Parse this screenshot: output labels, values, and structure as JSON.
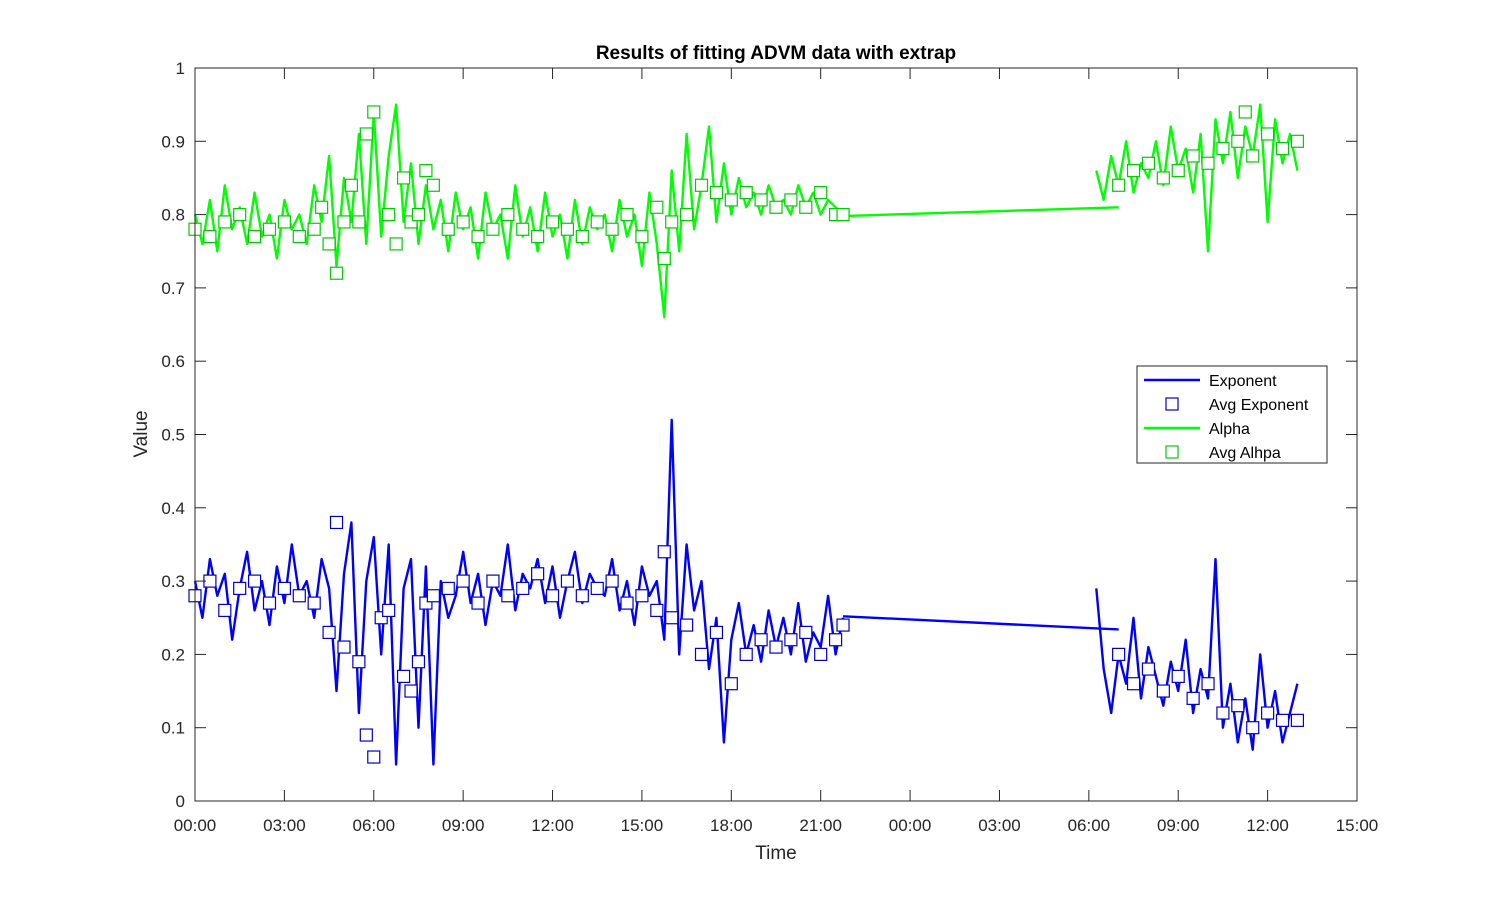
{
  "chart_data": {
    "type": "line",
    "title": "Results of fitting ADVM data with extrap",
    "xlabel": "Time",
    "ylabel": "Value",
    "xlim_hours": [
      0,
      39
    ],
    "ylim": [
      0,
      1
    ],
    "x_ticks": [
      {
        "hours": 0,
        "label": "00:00"
      },
      {
        "hours": 3,
        "label": "03:00"
      },
      {
        "hours": 6,
        "label": "06:00"
      },
      {
        "hours": 9,
        "label": "09:00"
      },
      {
        "hours": 12,
        "label": "12:00"
      },
      {
        "hours": 15,
        "label": "15:00"
      },
      {
        "hours": 18,
        "label": "18:00"
      },
      {
        "hours": 21,
        "label": "21:00"
      },
      {
        "hours": 24,
        "label": "00:00"
      },
      {
        "hours": 27,
        "label": "03:00"
      },
      {
        "hours": 30,
        "label": "06:00"
      },
      {
        "hours": 33,
        "label": "09:00"
      },
      {
        "hours": 36,
        "label": "12:00"
      },
      {
        "hours": 39,
        "label": "15:00"
      }
    ],
    "y_ticks": [
      {
        "value": 0,
        "label": "0"
      },
      {
        "value": 0.1,
        "label": "0.1"
      },
      {
        "value": 0.2,
        "label": "0.2"
      },
      {
        "value": 0.3,
        "label": "0.3"
      },
      {
        "value": 0.4,
        "label": "0.4"
      },
      {
        "value": 0.5,
        "label": "0.5"
      },
      {
        "value": 0.6,
        "label": "0.6"
      },
      {
        "value": 0.7,
        "label": "0.7"
      },
      {
        "value": 0.8,
        "label": "0.8"
      },
      {
        "value": 0.9,
        "label": "0.9"
      },
      {
        "value": 1,
        "label": "1"
      }
    ],
    "grid": false,
    "legend_position": "right",
    "series": [
      {
        "name": "Exponent",
        "kind": "line",
        "color": "#0000ff",
        "x": [
          0.0,
          0.25,
          0.5,
          0.75,
          1.0,
          1.25,
          1.5,
          1.75,
          2.0,
          2.25,
          2.5,
          2.75,
          3.0,
          3.25,
          3.5,
          3.75,
          4.0,
          4.25,
          4.5,
          4.75,
          5.0,
          5.25,
          5.5,
          5.75,
          6.0,
          6.25,
          6.5,
          6.75,
          7.0,
          7.25,
          7.5,
          7.75,
          8.0,
          8.25,
          8.5,
          8.75,
          9.0,
          9.25,
          9.5,
          9.75,
          10.0,
          10.25,
          10.5,
          10.75,
          11.0,
          11.25,
          11.5,
          11.75,
          12.0,
          12.25,
          12.5,
          12.75,
          13.0,
          13.25,
          13.5,
          13.75,
          14.0,
          14.25,
          14.5,
          14.75,
          15.0,
          15.25,
          15.5,
          15.75,
          16.0,
          16.25,
          16.5,
          16.75,
          17.0,
          17.25,
          17.5,
          17.75,
          18.0,
          18.25,
          18.5,
          18.75,
          19.0,
          19.25,
          19.5,
          19.75,
          20.0,
          20.25,
          20.5,
          20.75,
          21.0,
          21.25,
          21.5,
          21.75,
          30.25,
          30.5,
          30.75,
          31.0,
          31.25,
          31.5,
          31.75,
          32.0,
          32.25,
          32.5,
          32.75,
          33.0,
          33.25,
          33.5,
          33.75,
          34.0,
          34.25,
          34.5,
          34.75,
          35.0,
          35.25,
          35.5,
          35.75,
          36.0,
          36.25,
          36.5,
          36.75,
          37.0
        ],
        "values": [
          0.3,
          0.25,
          0.33,
          0.28,
          0.31,
          0.22,
          0.29,
          0.34,
          0.26,
          0.3,
          0.24,
          0.32,
          0.27,
          0.35,
          0.28,
          0.3,
          0.25,
          0.33,
          0.29,
          0.15,
          0.31,
          0.38,
          0.12,
          0.3,
          0.36,
          0.2,
          0.35,
          0.05,
          0.29,
          0.33,
          0.1,
          0.32,
          0.05,
          0.3,
          0.25,
          0.28,
          0.34,
          0.27,
          0.31,
          0.24,
          0.3,
          0.28,
          0.35,
          0.26,
          0.31,
          0.29,
          0.33,
          0.27,
          0.32,
          0.25,
          0.3,
          0.34,
          0.27,
          0.31,
          0.29,
          0.28,
          0.33,
          0.26,
          0.3,
          0.24,
          0.32,
          0.28,
          0.3,
          0.22,
          0.52,
          0.2,
          0.35,
          0.26,
          0.3,
          0.18,
          0.25,
          0.08,
          0.22,
          0.27,
          0.2,
          0.24,
          0.19,
          0.26,
          0.21,
          0.25,
          0.2,
          0.27,
          0.19,
          0.23,
          0.21,
          0.28,
          0.2,
          0.25,
          0.29,
          0.18,
          0.12,
          0.2,
          0.16,
          0.25,
          0.14,
          0.21,
          0.17,
          0.13,
          0.19,
          0.15,
          0.22,
          0.12,
          0.18,
          0.14,
          0.33,
          0.1,
          0.16,
          0.08,
          0.14,
          0.07,
          0.2,
          0.1,
          0.15,
          0.08,
          0.12,
          0.16
        ],
        "bridge": [
          {
            "x": 21.75,
            "y": 0.252
          },
          {
            "x": 31.0,
            "y": 0.234
          }
        ]
      },
      {
        "name": "Avg Exponent",
        "kind": "markers",
        "color": "#0000cc",
        "x": [
          0.0,
          0.5,
          1.0,
          1.5,
          2.0,
          2.5,
          3.0,
          3.5,
          4.0,
          4.5,
          4.75,
          5.0,
          5.5,
          5.75,
          6.0,
          6.25,
          6.5,
          7.0,
          7.25,
          7.5,
          7.75,
          8.0,
          8.5,
          9.0,
          9.5,
          10.0,
          10.5,
          11.0,
          11.5,
          12.0,
          12.5,
          13.0,
          13.5,
          14.0,
          14.5,
          15.0,
          15.5,
          15.75,
          16.0,
          16.5,
          17.0,
          17.5,
          18.0,
          18.5,
          19.0,
          19.5,
          20.0,
          20.5,
          21.0,
          21.5,
          21.75,
          31.0,
          31.5,
          32.0,
          32.5,
          33.0,
          33.5,
          34.0,
          34.5,
          35.0,
          35.5,
          36.0,
          36.5,
          37.0
        ],
        "values": [
          0.28,
          0.3,
          0.26,
          0.29,
          0.3,
          0.27,
          0.29,
          0.28,
          0.27,
          0.23,
          0.38,
          0.21,
          0.19,
          0.09,
          0.06,
          0.25,
          0.26,
          0.17,
          0.15,
          0.19,
          0.27,
          0.28,
          0.29,
          0.3,
          0.27,
          0.3,
          0.28,
          0.29,
          0.31,
          0.28,
          0.3,
          0.28,
          0.29,
          0.3,
          0.27,
          0.28,
          0.26,
          0.34,
          0.25,
          0.24,
          0.2,
          0.23,
          0.16,
          0.2,
          0.22,
          0.21,
          0.22,
          0.23,
          0.2,
          0.22,
          0.24,
          0.2,
          0.16,
          0.18,
          0.15,
          0.17,
          0.14,
          0.16,
          0.12,
          0.13,
          0.1,
          0.12,
          0.11,
          0.11
        ]
      },
      {
        "name": "Alpha",
        "kind": "line",
        "color": "#00ff00",
        "x": [
          0.0,
          0.25,
          0.5,
          0.75,
          1.0,
          1.25,
          1.5,
          1.75,
          2.0,
          2.25,
          2.5,
          2.75,
          3.0,
          3.25,
          3.5,
          3.75,
          4.0,
          4.25,
          4.5,
          4.75,
          5.0,
          5.25,
          5.5,
          5.75,
          6.0,
          6.25,
          6.5,
          6.75,
          7.0,
          7.25,
          7.5,
          7.75,
          8.0,
          8.25,
          8.5,
          8.75,
          9.0,
          9.25,
          9.5,
          9.75,
          10.0,
          10.25,
          10.5,
          10.75,
          11.0,
          11.25,
          11.5,
          11.75,
          12.0,
          12.25,
          12.5,
          12.75,
          13.0,
          13.25,
          13.5,
          13.75,
          14.0,
          14.25,
          14.5,
          14.75,
          15.0,
          15.25,
          15.5,
          15.75,
          16.0,
          16.25,
          16.5,
          16.75,
          17.0,
          17.25,
          17.5,
          17.75,
          18.0,
          18.25,
          18.5,
          18.75,
          19.0,
          19.25,
          19.5,
          19.75,
          20.0,
          20.25,
          20.5,
          20.75,
          21.0,
          21.25,
          21.5,
          21.75,
          30.25,
          30.5,
          30.75,
          31.0,
          31.25,
          31.5,
          31.75,
          32.0,
          32.25,
          32.5,
          32.75,
          33.0,
          33.25,
          33.5,
          33.75,
          34.0,
          34.25,
          34.5,
          34.75,
          35.0,
          35.25,
          35.5,
          35.75,
          36.0,
          36.25,
          36.5,
          36.75,
          37.0
        ],
        "values": [
          0.8,
          0.76,
          0.82,
          0.75,
          0.84,
          0.78,
          0.81,
          0.76,
          0.83,
          0.77,
          0.8,
          0.74,
          0.82,
          0.78,
          0.8,
          0.76,
          0.84,
          0.79,
          0.88,
          0.73,
          0.85,
          0.79,
          0.91,
          0.76,
          0.94,
          0.77,
          0.88,
          0.95,
          0.79,
          0.87,
          0.76,
          0.84,
          0.78,
          0.82,
          0.75,
          0.83,
          0.78,
          0.81,
          0.74,
          0.83,
          0.78,
          0.8,
          0.74,
          0.84,
          0.77,
          0.81,
          0.75,
          0.83,
          0.77,
          0.8,
          0.74,
          0.82,
          0.76,
          0.81,
          0.78,
          0.8,
          0.75,
          0.82,
          0.77,
          0.8,
          0.73,
          0.83,
          0.76,
          0.66,
          0.86,
          0.75,
          0.91,
          0.78,
          0.84,
          0.92,
          0.79,
          0.87,
          0.8,
          0.85,
          0.81,
          0.83,
          0.8,
          0.84,
          0.81,
          0.82,
          0.8,
          0.84,
          0.81,
          0.83,
          0.8,
          0.82,
          0.81,
          0.8,
          0.86,
          0.82,
          0.88,
          0.84,
          0.9,
          0.83,
          0.87,
          0.85,
          0.9,
          0.84,
          0.92,
          0.86,
          0.89,
          0.83,
          0.91,
          0.75,
          0.93,
          0.87,
          0.94,
          0.85,
          0.92,
          0.88,
          0.95,
          0.79,
          0.93,
          0.87,
          0.91,
          0.86
        ],
        "bridge": [
          {
            "x": 21.75,
            "y": 0.798
          },
          {
            "x": 31.0,
            "y": 0.81
          }
        ]
      },
      {
        "name": "Avg Alhpa",
        "kind": "markers",
        "color": "#00cc00",
        "x": [
          0.0,
          0.5,
          1.0,
          1.5,
          2.0,
          2.5,
          3.0,
          3.5,
          4.0,
          4.25,
          4.5,
          4.75,
          5.0,
          5.25,
          5.5,
          5.75,
          6.0,
          6.5,
          6.75,
          7.0,
          7.25,
          7.5,
          7.75,
          8.0,
          8.5,
          9.0,
          9.5,
          10.0,
          10.5,
          11.0,
          11.5,
          12.0,
          12.5,
          13.0,
          13.5,
          14.0,
          14.5,
          15.0,
          15.5,
          15.75,
          16.0,
          16.5,
          17.0,
          17.5,
          18.0,
          18.5,
          19.0,
          19.5,
          20.0,
          20.5,
          21.0,
          21.5,
          21.75,
          31.0,
          31.5,
          32.0,
          32.5,
          33.0,
          33.5,
          34.0,
          34.5,
          35.0,
          35.25,
          35.5,
          36.0,
          36.5,
          37.0
        ],
        "values": [
          0.78,
          0.77,
          0.79,
          0.8,
          0.77,
          0.78,
          0.79,
          0.77,
          0.78,
          0.81,
          0.76,
          0.72,
          0.79,
          0.84,
          0.79,
          0.91,
          0.94,
          0.8,
          0.76,
          0.85,
          0.79,
          0.8,
          0.86,
          0.84,
          0.78,
          0.79,
          0.77,
          0.78,
          0.8,
          0.78,
          0.77,
          0.79,
          0.78,
          0.77,
          0.79,
          0.78,
          0.8,
          0.77,
          0.81,
          0.74,
          0.79,
          0.8,
          0.84,
          0.83,
          0.82,
          0.83,
          0.82,
          0.81,
          0.82,
          0.81,
          0.83,
          0.8,
          0.8,
          0.84,
          0.86,
          0.87,
          0.85,
          0.86,
          0.88,
          0.87,
          0.89,
          0.9,
          0.94,
          0.88,
          0.91,
          0.89,
          0.9
        ]
      }
    ]
  },
  "legend": {
    "items": [
      {
        "label": "Exponent",
        "kind": "line",
        "color": "#0000ff"
      },
      {
        "label": "Avg Exponent",
        "kind": "marker",
        "color": "#0000cc"
      },
      {
        "label": "Alpha",
        "kind": "line",
        "color": "#00ff00"
      },
      {
        "label": "Avg Alhpa",
        "kind": "marker",
        "color": "#00cc00"
      }
    ]
  }
}
